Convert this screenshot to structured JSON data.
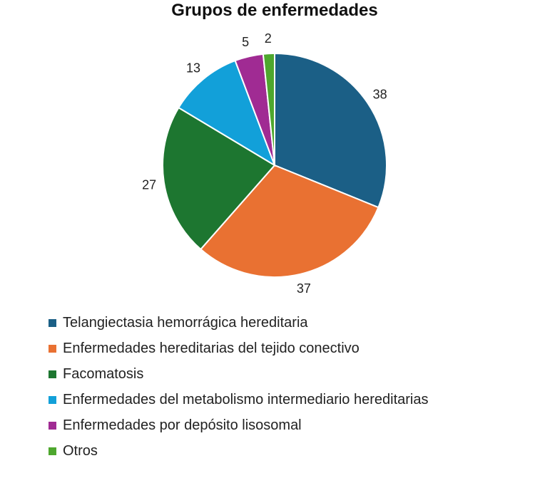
{
  "chart_data": {
    "type": "pie",
    "title": "Grupos de enfermedades",
    "categories": [
      "Telangiectasia hemorrágica hereditaria",
      "Enfermedades hereditarias del tejido conectivo",
      "Facomatosis",
      "Enfermedades del metabolismo intermediario hereditarias",
      "Enfermedades por depósito lisosomal",
      "Otros"
    ],
    "values": [
      38,
      37,
      27,
      13,
      5,
      2
    ],
    "colors": [
      "#1b5f86",
      "#e97132",
      "#1d7630",
      "#12a0d9",
      "#a02b93",
      "#4ea72e"
    ],
    "legend_position": "bottom",
    "data_labels": true
  }
}
